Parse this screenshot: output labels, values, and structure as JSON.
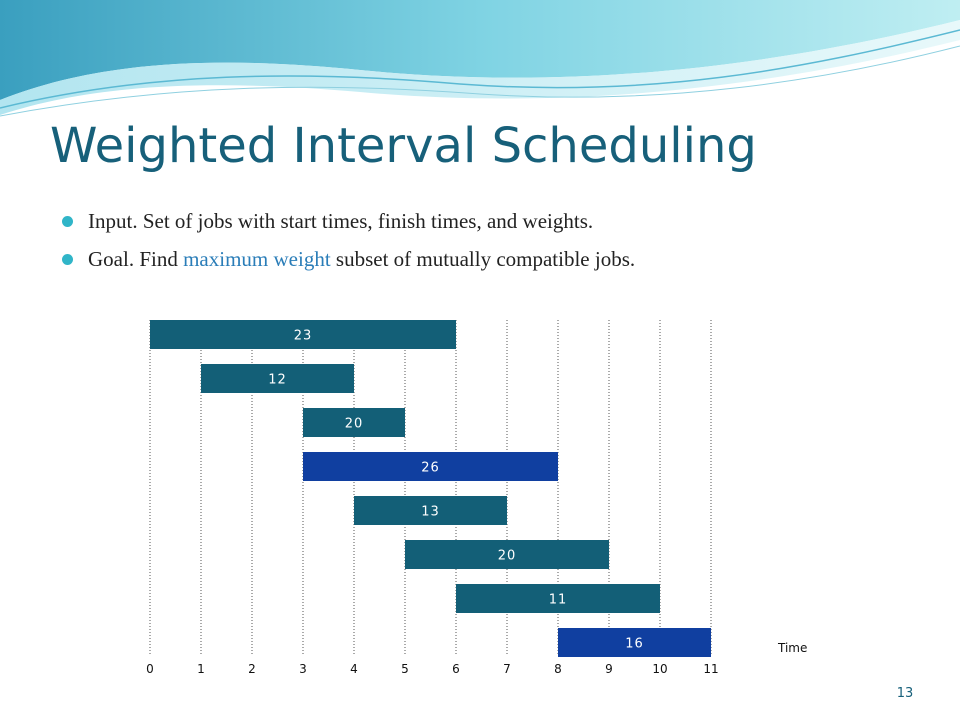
{
  "slide": {
    "title": "Weighted Interval Scheduling",
    "bullets": [
      {
        "before": "Input.  Set of jobs with start times, finish times, and weights.",
        "highlight": "",
        "after": ""
      },
      {
        "before": "Goal.  Find ",
        "highlight": "maximum weight",
        "after": " subset of mutually compatible jobs."
      }
    ],
    "page_number": "13"
  },
  "colors": {
    "title": "#17607a",
    "bullet": "#30b5c8",
    "highlight": "#2a7db8",
    "job_default": "#135f77",
    "job_highlight": "#103fa0"
  },
  "chart_data": {
    "type": "gantt",
    "xlabel": "Time",
    "x_ticks": [
      "0",
      "1",
      "2",
      "3",
      "4",
      "5",
      "6",
      "7",
      "8",
      "9",
      "10",
      "11"
    ],
    "xlim": [
      0,
      11
    ],
    "jobs": [
      {
        "start": 0,
        "finish": 6,
        "weight": "23",
        "highlighted": false
      },
      {
        "start": 1,
        "finish": 4,
        "weight": "12",
        "highlighted": false
      },
      {
        "start": 3,
        "finish": 5,
        "weight": "20",
        "highlighted": false
      },
      {
        "start": 3,
        "finish": 8,
        "weight": "26",
        "highlighted": true
      },
      {
        "start": 4,
        "finish": 7,
        "weight": "13",
        "highlighted": false
      },
      {
        "start": 5,
        "finish": 9,
        "weight": "20",
        "highlighted": false
      },
      {
        "start": 6,
        "finish": 10,
        "weight": "11",
        "highlighted": false
      },
      {
        "start": 8,
        "finish": 11,
        "weight": "16",
        "highlighted": true
      }
    ]
  }
}
